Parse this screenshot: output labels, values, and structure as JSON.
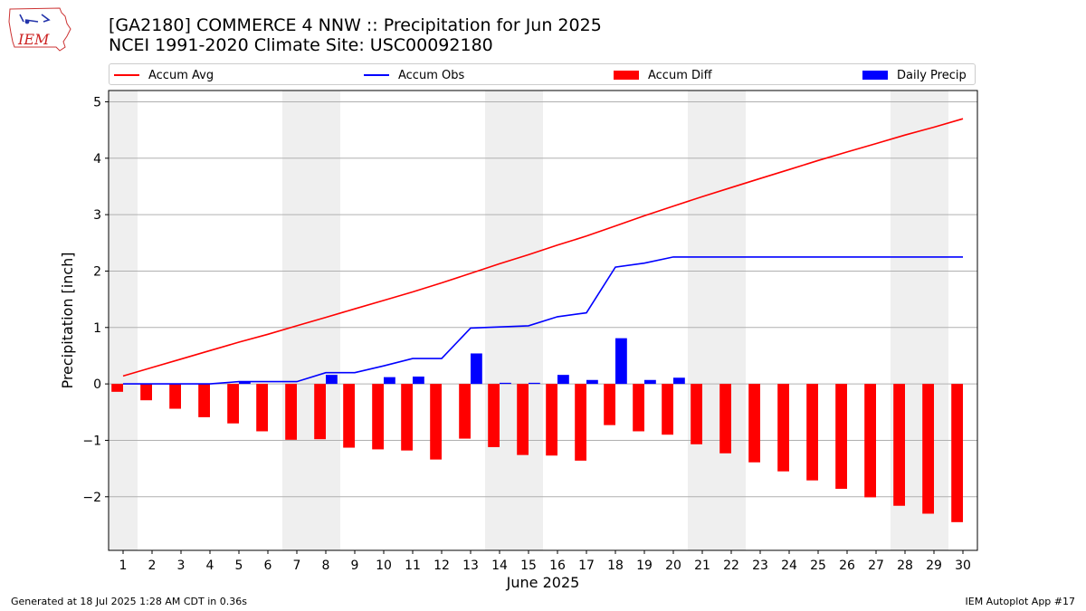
{
  "header": {
    "logo_text": "IEM",
    "title_line1": "[GA2180] COMMERCE 4 NNW :: Precipitation for Jun 2025",
    "title_line2": "NCEI 1991-2020 Climate Site: USC00092180"
  },
  "legend": [
    {
      "label": "Accum Avg",
      "kind": "line",
      "color": "#ff0000"
    },
    {
      "label": "Accum Obs",
      "kind": "line",
      "color": "#0000ff"
    },
    {
      "label": "Accum Diff",
      "kind": "box",
      "color": "#ff0000"
    },
    {
      "label": "Daily Precip",
      "kind": "box",
      "color": "#0000ff"
    }
  ],
  "footer": {
    "left": "Generated at 18 Jul 2025 1:28 AM CDT in 0.36s",
    "right": "IEM Autoplot App #17"
  },
  "chart_data": {
    "type": "bar",
    "xlabel": "June 2025",
    "ylabel": "Precipitation [inch]",
    "xlim": [
      0.5,
      30.5
    ],
    "ylim": [
      -2.95,
      5.2
    ],
    "yticks": [
      -2,
      -1,
      0,
      1,
      2,
      3,
      4,
      5
    ],
    "ytick_labels": [
      "−2",
      "−1",
      "0",
      "1",
      "2",
      "3",
      "4",
      "5"
    ],
    "x": [
      1,
      2,
      3,
      4,
      5,
      6,
      7,
      8,
      9,
      10,
      11,
      12,
      13,
      14,
      15,
      16,
      17,
      18,
      19,
      20,
      21,
      22,
      23,
      24,
      25,
      26,
      27,
      28,
      29,
      30
    ],
    "weekend_shading": [
      [
        0.5,
        1.5
      ],
      [
        6.5,
        8.5
      ],
      [
        13.5,
        15.5
      ],
      [
        20.5,
        22.5
      ],
      [
        27.5,
        29.5
      ]
    ],
    "grid": "horizontal",
    "legend_position": "top",
    "series": [
      {
        "name": "Accum Avg",
        "kind": "line",
        "color": "#ff0000",
        "values": [
          0.14,
          0.29,
          0.44,
          0.59,
          0.74,
          0.88,
          1.03,
          1.18,
          1.33,
          1.48,
          1.63,
          1.79,
          1.96,
          2.13,
          2.29,
          2.46,
          2.62,
          2.8,
          2.98,
          3.15,
          3.32,
          3.48,
          3.64,
          3.8,
          3.96,
          4.11,
          4.26,
          4.41,
          4.55,
          4.7
        ]
      },
      {
        "name": "Accum Obs",
        "kind": "line",
        "color": "#0000ff",
        "values": [
          0.0,
          0.0,
          0.0,
          0.0,
          0.04,
          0.04,
          0.04,
          0.2,
          0.2,
          0.32,
          0.45,
          0.45,
          0.99,
          1.01,
          1.03,
          1.19,
          1.26,
          2.07,
          2.14,
          2.25,
          2.25,
          2.25,
          2.25,
          2.25,
          2.25,
          2.25,
          2.25,
          2.25,
          2.25,
          2.25
        ]
      },
      {
        "name": "Accum Diff",
        "kind": "bar",
        "color": "#ff0000",
        "values": [
          -0.14,
          -0.29,
          -0.44,
          -0.59,
          -0.7,
          -0.84,
          -0.99,
          -0.98,
          -1.13,
          -1.16,
          -1.18,
          -1.34,
          -0.97,
          -1.12,
          -1.26,
          -1.27,
          -1.36,
          -0.73,
          -0.84,
          -0.9,
          -1.07,
          -1.23,
          -1.39,
          -1.55,
          -1.71,
          -1.86,
          -2.01,
          -2.16,
          -2.3,
          -2.45
        ]
      },
      {
        "name": "Daily Precip",
        "kind": "bar",
        "color": "#0000ff",
        "values": [
          0.0,
          0.0,
          0.0,
          0.0,
          0.04,
          0.0,
          0.0,
          0.16,
          0.0,
          0.12,
          0.13,
          0.0,
          0.54,
          0.02,
          0.02,
          0.16,
          0.07,
          0.81,
          0.07,
          0.11,
          0.0,
          0.0,
          0.0,
          0.0,
          0.0,
          0.0,
          0.0,
          0.0,
          0.0,
          0.0
        ]
      }
    ]
  }
}
